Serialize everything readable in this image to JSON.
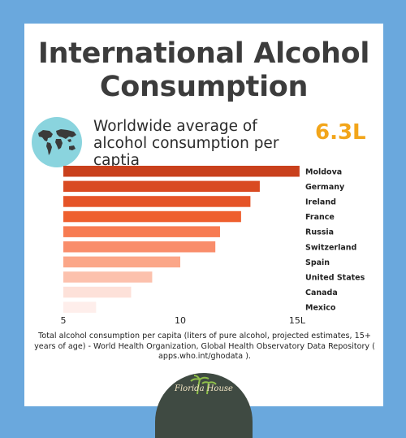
{
  "title": "International Alcohol Consumption",
  "subtitle": "Worldwide average of alcohol consumption per captia",
  "average_value": "6.3L",
  "source_note": "Total alcohol consumption per capita (liters of pure alcohol, projected estimates, 15+ years of age) - World Health Organization, Global Health Observatory Data Repository ( apps.who.int/ghodata ).",
  "logo": {
    "text": "Florida House",
    "icon": "palm-tree-icon"
  },
  "globe_icon": "world-map-icon",
  "colors": {
    "background": "#6aa8dd",
    "title": "#3c3c3c",
    "accent": "#f2a51a",
    "globe": "#8ad4de"
  },
  "chart_data": {
    "type": "bar",
    "orientation": "horizontal",
    "categories": [
      "Moldova",
      "Germany",
      "Ireland",
      "France",
      "Russia",
      "Switzerland",
      "Spain",
      "United States",
      "Canada",
      "Mexico"
    ],
    "values": [
      15.1,
      13.4,
      13.0,
      12.6,
      11.7,
      11.5,
      10.0,
      8.8,
      7.9,
      6.4
    ],
    "bar_colors": [
      "#c9401c",
      "#d94a22",
      "#e55428",
      "#ee5f2e",
      "#f77b52",
      "#f98d6b",
      "#fba688",
      "#fcc1ad",
      "#fde1d9",
      "#feeeeb"
    ],
    "x_ticks": [
      "5",
      "10",
      "15L"
    ],
    "x_tick_values": [
      5,
      10,
      15
    ],
    "xlim": [
      5,
      15
    ],
    "grid": false,
    "legend": "none"
  }
}
